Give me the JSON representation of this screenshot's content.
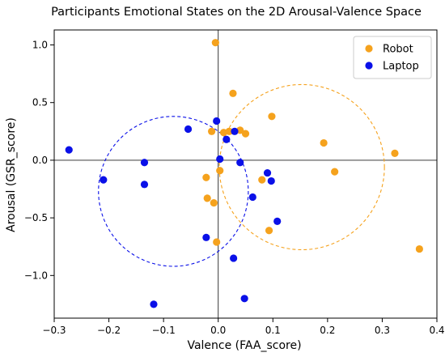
{
  "chart_data": {
    "type": "scatter",
    "title": "Participants Emotional States on the 2D Arousal-Valence Space",
    "xlabel": "Valence (FAA_score)",
    "ylabel": "Arousal (GSR_score)",
    "xlim": [
      -0.3,
      0.4
    ],
    "ylim": [
      -1.37,
      1.13
    ],
    "x_ticks": [
      -0.3,
      -0.2,
      -0.1,
      0.0,
      0.1,
      0.2,
      0.3,
      0.4
    ],
    "x_tick_labels": [
      "−0.3",
      "−0.2",
      "−0.1",
      "0.0",
      "0.1",
      "0.2",
      "0.3",
      "0.4"
    ],
    "y_ticks": [
      -1.0,
      -0.5,
      0.0,
      0.5,
      1.0
    ],
    "y_tick_labels": [
      "−1.0",
      "−0.5",
      "0.0",
      "0.5",
      "1.0"
    ],
    "grid": false,
    "reference_lines": {
      "x": 0,
      "y": 0
    },
    "legend": {
      "placement": "top-right",
      "entries": [
        "Robot",
        "Laptop"
      ]
    },
    "series": [
      {
        "name": "Robot",
        "color": "#f5a21d",
        "points": [
          {
            "x": -0.005,
            "y": 1.02
          },
          {
            "x": 0.027,
            "y": 0.58
          },
          {
            "x": 0.098,
            "y": 0.38
          },
          {
            "x": -0.012,
            "y": 0.25
          },
          {
            "x": 0.01,
            "y": 0.24
          },
          {
            "x": 0.02,
            "y": 0.25
          },
          {
            "x": 0.04,
            "y": 0.26
          },
          {
            "x": 0.05,
            "y": 0.23
          },
          {
            "x": 0.193,
            "y": 0.15
          },
          {
            "x": 0.323,
            "y": 0.06
          },
          {
            "x": 0.003,
            "y": -0.09
          },
          {
            "x": 0.213,
            "y": -0.1
          },
          {
            "x": 0.08,
            "y": -0.17
          },
          {
            "x": -0.022,
            "y": -0.15
          },
          {
            "x": -0.02,
            "y": -0.33
          },
          {
            "x": -0.008,
            "y": -0.37
          },
          {
            "x": 0.093,
            "y": -0.61
          },
          {
            "x": -0.003,
            "y": -0.71
          },
          {
            "x": 0.368,
            "y": -0.77
          }
        ],
        "circle": {
          "cx": 0.153,
          "cy": -0.06,
          "r": 0.151
        }
      },
      {
        "name": "Laptop",
        "color": "#0a10e8",
        "points": [
          {
            "x": -0.273,
            "y": 0.09
          },
          {
            "x": -0.055,
            "y": 0.27
          },
          {
            "x": -0.003,
            "y": 0.34
          },
          {
            "x": 0.015,
            "y": 0.18
          },
          {
            "x": 0.03,
            "y": 0.25
          },
          {
            "x": 0.003,
            "y": 0.01
          },
          {
            "x": 0.04,
            "y": -0.02
          },
          {
            "x": -0.135,
            "y": -0.02
          },
          {
            "x": -0.21,
            "y": -0.17
          },
          {
            "x": -0.135,
            "y": -0.21
          },
          {
            "x": 0.09,
            "y": -0.11
          },
          {
            "x": 0.097,
            "y": -0.18
          },
          {
            "x": 0.063,
            "y": -0.32
          },
          {
            "x": 0.108,
            "y": -0.53
          },
          {
            "x": -0.022,
            "y": -0.67
          },
          {
            "x": 0.028,
            "y": -0.85
          },
          {
            "x": 0.048,
            "y": -1.2
          },
          {
            "x": -0.118,
            "y": -1.25
          }
        ],
        "circle": {
          "cx": -0.082,
          "cy": -0.27,
          "r": 0.137
        }
      }
    ]
  }
}
